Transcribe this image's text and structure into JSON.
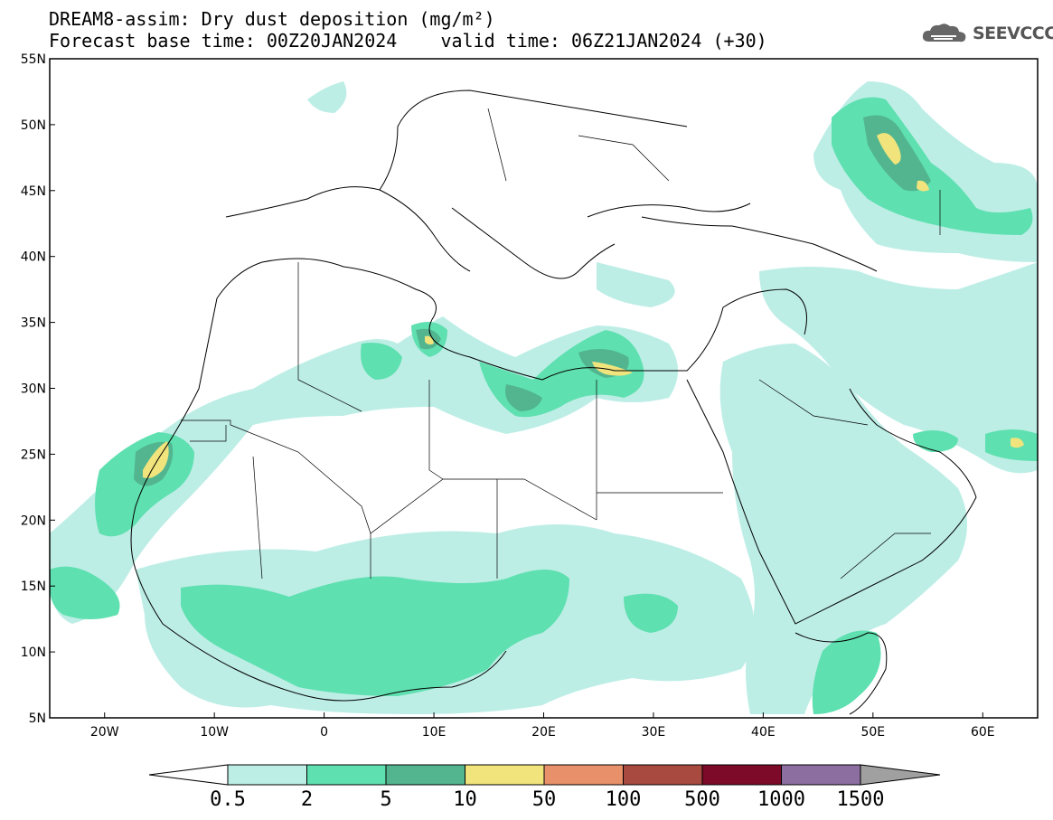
{
  "header": {
    "title_line1": "DREAM8-assim: Dry dust deposition (mg/m²)",
    "title_line2": "Forecast base time: 00Z20JAN2024    valid time: 06Z21JAN2024 (+30)"
  },
  "logo": {
    "text": "SEEVCCC",
    "icon": "cloud-logo-icon"
  },
  "map": {
    "lon_range": [
      -25,
      65
    ],
    "lat_range": [
      5,
      55
    ],
    "lat_labels": [
      "55N",
      "50N",
      "45N",
      "40N",
      "35N",
      "30N",
      "25N",
      "20N",
      "15N",
      "10N",
      "5N"
    ],
    "lon_labels": [
      "20W",
      "10W",
      "0",
      "10E",
      "20E",
      "30E",
      "40E",
      "50E",
      "60E"
    ]
  },
  "legend": {
    "labels": [
      "0.5",
      "2",
      "5",
      "10",
      "50",
      "100",
      "500",
      "1000",
      "1500"
    ],
    "colors": [
      "#bdeee6",
      "#5fe0b0",
      "#52b58f",
      "#f2e47c",
      "#e8906a",
      "#a84a40",
      "#7c0a28",
      "#8c6ea0"
    ],
    "arrow_low_color": "#ffffff",
    "arrow_high_color": "#a0a0a0"
  }
}
